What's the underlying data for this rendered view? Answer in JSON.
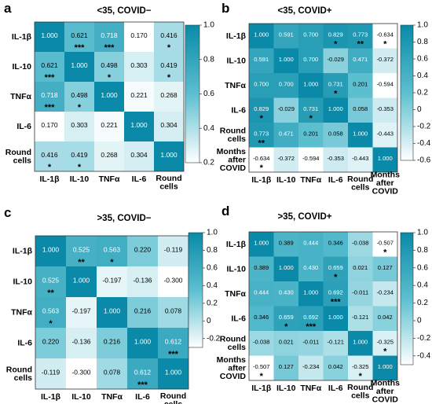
{
  "chart_data": [
    {
      "type": "heatmap",
      "panel_label": "a",
      "title": "<35, COVID−",
      "labels": [
        "IL-1β",
        "IL-10",
        "TNFα",
        "IL-6",
        "Round cells"
      ],
      "values": [
        [
          1.0,
          0.621,
          0.718,
          0.17,
          0.416
        ],
        [
          0.621,
          1.0,
          0.498,
          0.303,
          0.419
        ],
        [
          0.718,
          0.498,
          1.0,
          0.221,
          0.268
        ],
        [
          0.17,
          0.303,
          0.221,
          1.0,
          0.304
        ],
        [
          0.416,
          0.419,
          0.268,
          0.304,
          1.0
        ]
      ],
      "stars": [
        [
          "",
          "***",
          "***",
          "",
          "*"
        ],
        [
          "***",
          "",
          "*",
          "",
          "*"
        ],
        [
          "***",
          "*",
          "",
          "",
          ""
        ],
        [
          "",
          "",
          "",
          "",
          ""
        ],
        [
          "*",
          "*",
          "",
          "",
          ""
        ]
      ],
      "colorbar": {
        "min": 0.2,
        "max": 1.0,
        "ticks": [
          "1.0",
          "0.8",
          "0.6",
          "0.4",
          "0.2"
        ]
      }
    },
    {
      "type": "heatmap",
      "panel_label": "b",
      "title": "<35, COVID+",
      "labels": [
        "IL-1β",
        "IL-10",
        "TNFα",
        "IL-6",
        "Round cells",
        "Months after COVID"
      ],
      "values": [
        [
          1.0,
          0.591,
          0.7,
          0.829,
          0.773,
          -0.634
        ],
        [
          0.591,
          1.0,
          0.7,
          -0.029,
          0.471,
          -0.372
        ],
        [
          0.7,
          0.7,
          1.0,
          0.731,
          0.201,
          -0.594
        ],
        [
          0.829,
          -0.029,
          0.731,
          1.0,
          0.058,
          -0.353
        ],
        [
          0.773,
          0.471,
          0.201,
          0.058,
          1.0,
          -0.443
        ],
        [
          -0.634,
          -0.372,
          -0.594,
          -0.353,
          -0.443,
          1.0
        ]
      ],
      "stars": [
        [
          "",
          "",
          "",
          "*",
          "**",
          "*"
        ],
        [
          "",
          "",
          "",
          "",
          "",
          ""
        ],
        [
          "",
          "",
          "",
          "*",
          "",
          ""
        ],
        [
          "*",
          "",
          "*",
          "",
          "",
          ""
        ],
        [
          "**",
          "",
          "",
          "",
          "",
          ""
        ],
        [
          "*",
          "",
          "",
          "",
          "",
          ""
        ]
      ],
      "colorbar": {
        "min": -0.6,
        "max": 1.0,
        "ticks": [
          "1.0",
          "0.8",
          "0.6",
          "0.4",
          "0.2",
          "0",
          "-0.2",
          "-0.4",
          "-0.6"
        ]
      }
    },
    {
      "type": "heatmap",
      "panel_label": "c",
      "title": ">35, COVID−",
      "labels": [
        "IL-1β",
        "IL-10",
        "TNFα",
        "IL-6",
        "Round cells"
      ],
      "values": [
        [
          1.0,
          0.525,
          0.563,
          0.22,
          -0.119
        ],
        [
          0.525,
          1.0,
          -0.197,
          -0.136,
          -0.3
        ],
        [
          0.563,
          -0.197,
          1.0,
          0.216,
          0.078
        ],
        [
          0.22,
          -0.136,
          0.216,
          1.0,
          0.612
        ],
        [
          -0.119,
          -0.3,
          0.078,
          0.612,
          1.0
        ]
      ],
      "stars": [
        [
          "",
          "**",
          "*",
          "",
          ""
        ],
        [
          "**",
          "",
          "",
          "",
          ""
        ],
        [
          "*",
          "",
          "",
          "",
          ""
        ],
        [
          "",
          "",
          "",
          "",
          "***"
        ],
        [
          "",
          "",
          "",
          "***",
          ""
        ]
      ],
      "colorbar": {
        "min": -0.3,
        "max": 1.0,
        "ticks": [
          "1.0",
          "0.8",
          "0.6",
          "0.4",
          "0.2",
          "0",
          "-0.2"
        ]
      }
    },
    {
      "type": "heatmap",
      "panel_label": "d",
      "title": ">35, COVID+",
      "labels": [
        "IL-1β",
        "IL-10",
        "TNFα",
        "IL-6",
        "Round cells",
        "Months after COVID"
      ],
      "values": [
        [
          1.0,
          0.389,
          0.444,
          0.346,
          -0.038,
          -0.507
        ],
        [
          0.389,
          1.0,
          0.43,
          0.659,
          0.021,
          0.127
        ],
        [
          0.444,
          0.43,
          1.0,
          0.692,
          -0.011,
          -0.234
        ],
        [
          0.346,
          0.659,
          0.692,
          1.0,
          -0.121,
          0.042
        ],
        [
          -0.038,
          0.021,
          -0.011,
          -0.121,
          1.0,
          -0.325
        ],
        [
          -0.507,
          0.127,
          -0.234,
          0.042,
          -0.325,
          1.0
        ]
      ],
      "stars": [
        [
          "",
          "",
          "",
          "",
          "",
          "*"
        ],
        [
          "",
          "",
          "",
          "*",
          "",
          ""
        ],
        [
          "",
          "",
          "",
          "***",
          "",
          ""
        ],
        [
          "",
          "*",
          "***",
          "",
          "",
          ""
        ],
        [
          "",
          "",
          "",
          "",
          "",
          "*"
        ],
        [
          "*",
          "",
          "",
          "",
          "*",
          ""
        ]
      ],
      "colorbar": {
        "min": -0.5,
        "max": 1.0,
        "ticks": [
          "1.0",
          "0.8",
          "0.6",
          "0.4",
          "0.2",
          "0",
          "-0.2",
          "-0.4"
        ]
      }
    }
  ],
  "colors": {
    "low": "#ffffff",
    "mid": "#5cbfd0",
    "high": "#0a8aa8",
    "dark_text": "#ffffff",
    "light_text": "#000000"
  }
}
